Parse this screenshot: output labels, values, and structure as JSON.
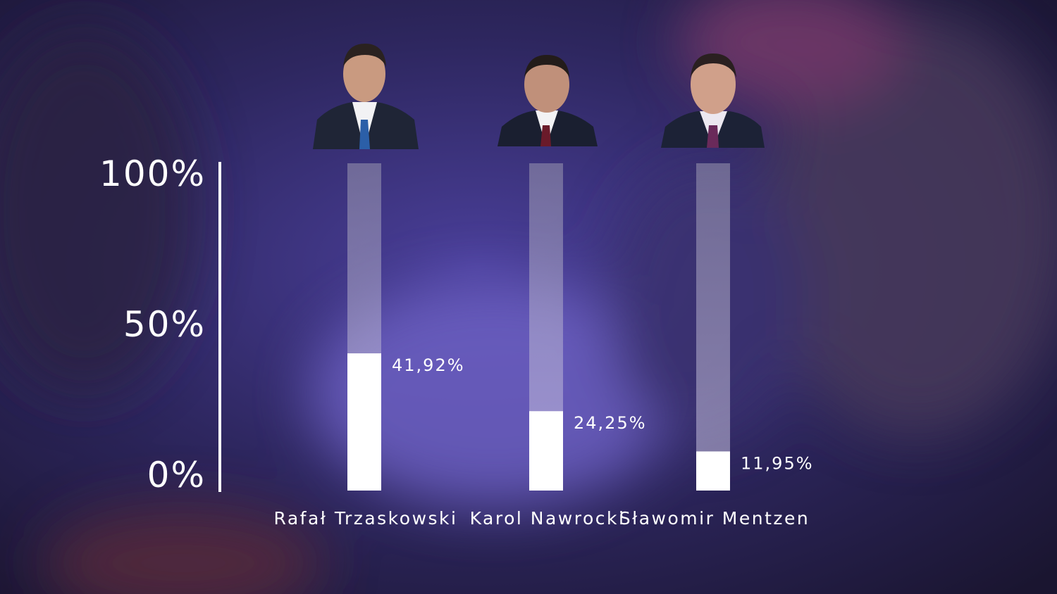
{
  "chart_data": {
    "type": "bar",
    "categories": [
      "Rafał Trzaskowski",
      "Karol Nawrocki",
      "Sławomir Mentzen"
    ],
    "values": [
      41.92,
      24.25,
      11.95
    ],
    "value_labels": [
      "41,92%",
      "24,25%",
      "11,95%"
    ],
    "color": "#ffffff",
    "ylim": [
      0,
      100
    ],
    "yticks": [
      {
        "value": 0,
        "label": "0%"
      },
      {
        "value": 50,
        "label": "50%"
      },
      {
        "value": 100,
        "label": "100%"
      }
    ]
  }
}
